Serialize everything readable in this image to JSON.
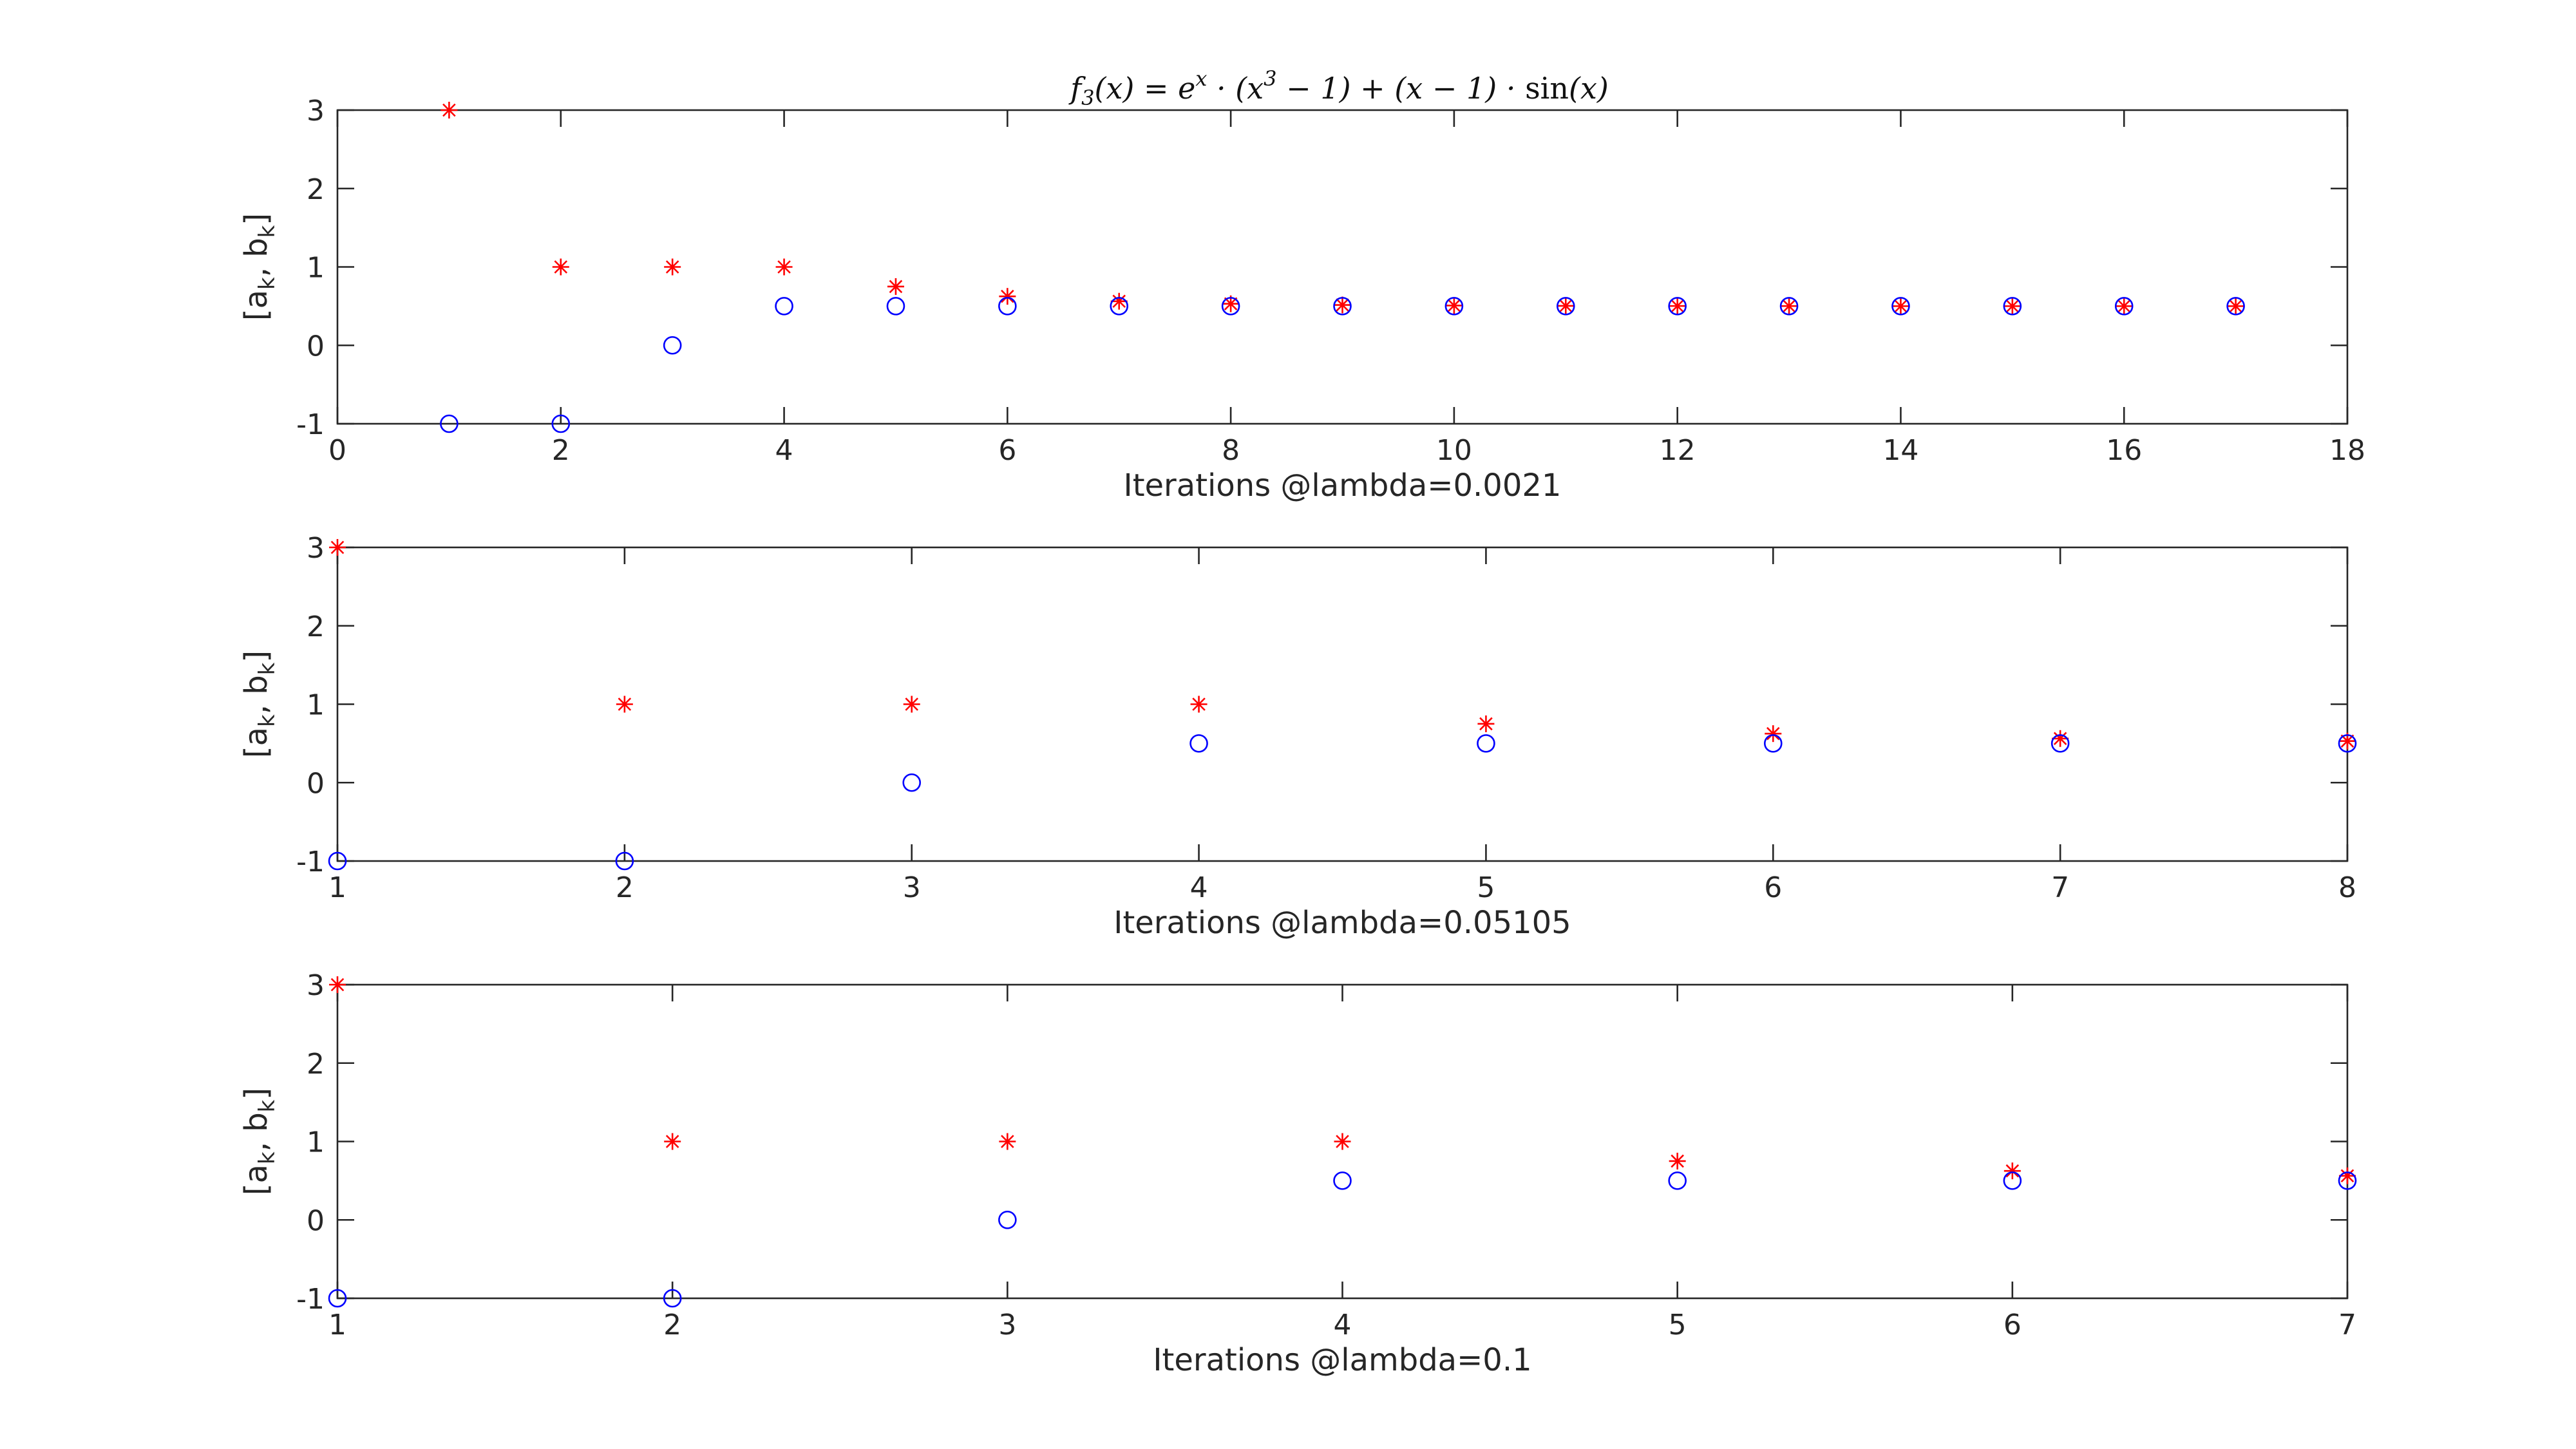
{
  "title": "f3(x) = e^x · (x^3 − 1) + (x − 1) · sin(x)",
  "title_parts": {
    "f": "f",
    "f_sub": "3",
    "lhs": "(x) = e",
    "exp1": "x",
    "mid": " · (x",
    "exp2": "3",
    "rest": " − 1) + (x − 1) · ",
    "sin": "sin",
    "tail": "(x)"
  },
  "ylabel_parts": {
    "open": "[a",
    "sub1": "k",
    "mid": ", b",
    "sub2": "k",
    "close": "]"
  },
  "colors": {
    "a_series": "#ff0000",
    "b_series": "#0000ff",
    "axes": "#262626"
  },
  "chart_data": [
    {
      "type": "scatter",
      "xlabel": "Iterations @lambda=0.0021",
      "ylabel": "[a_k, b_k]",
      "xlim": [
        0,
        18
      ],
      "ylim": [
        -1,
        3
      ],
      "xticks": [
        0,
        2,
        4,
        6,
        8,
        10,
        12,
        14,
        16,
        18
      ],
      "yticks": [
        -1,
        0,
        1,
        2,
        3
      ],
      "grid": false,
      "series": [
        {
          "marker": "star",
          "color": "#ff0000",
          "x": [
            1,
            2,
            3,
            4,
            5,
            6,
            7,
            8,
            9,
            10,
            11,
            12,
            13,
            14,
            15,
            16,
            17
          ],
          "y": [
            3,
            1,
            1,
            1,
            0.75,
            0.625,
            0.5625,
            0.53,
            0.515,
            0.508,
            0.504,
            0.502,
            0.501,
            0.5,
            0.5,
            0.5,
            0.5
          ]
        },
        {
          "marker": "circle",
          "color": "#0000ff",
          "x": [
            1,
            2,
            3,
            4,
            5,
            6,
            7,
            8,
            9,
            10,
            11,
            12,
            13,
            14,
            15,
            16,
            17
          ],
          "y": [
            -1,
            -1,
            0,
            0.5,
            0.5,
            0.5,
            0.5,
            0.5,
            0.5,
            0.5,
            0.5,
            0.5,
            0.5,
            0.5,
            0.5,
            0.5,
            0.5
          ]
        }
      ]
    },
    {
      "type": "scatter",
      "xlabel": "Iterations @lambda=0.05105",
      "ylabel": "[a_k, b_k]",
      "xlim": [
        1,
        8
      ],
      "ylim": [
        -1,
        3
      ],
      "xticks": [
        1,
        2,
        3,
        4,
        5,
        6,
        7,
        8
      ],
      "yticks": [
        -1,
        0,
        1,
        2,
        3
      ],
      "grid": false,
      "series": [
        {
          "marker": "star",
          "color": "#ff0000",
          "x": [
            1,
            2,
            3,
            4,
            5,
            6,
            7,
            8
          ],
          "y": [
            3,
            1,
            1,
            1,
            0.75,
            0.625,
            0.5625,
            0.53
          ]
        },
        {
          "marker": "circle",
          "color": "#0000ff",
          "x": [
            1,
            2,
            3,
            4,
            5,
            6,
            7,
            8
          ],
          "y": [
            -1,
            -1,
            0,
            0.5,
            0.5,
            0.5,
            0.5,
            0.5
          ]
        }
      ]
    },
    {
      "type": "scatter",
      "xlabel": "Iterations @lambda=0.1",
      "ylabel": "[a_k, b_k]",
      "xlim": [
        1,
        7
      ],
      "ylim": [
        -1,
        3
      ],
      "xticks": [
        1,
        2,
        3,
        4,
        5,
        6,
        7
      ],
      "yticks": [
        -1,
        0,
        1,
        2,
        3
      ],
      "grid": false,
      "series": [
        {
          "marker": "star",
          "color": "#ff0000",
          "x": [
            1,
            2,
            3,
            4,
            5,
            6,
            7
          ],
          "y": [
            3,
            1,
            1,
            1,
            0.75,
            0.625,
            0.5625
          ]
        },
        {
          "marker": "circle",
          "color": "#0000ff",
          "x": [
            1,
            2,
            3,
            4,
            5,
            6,
            7
          ],
          "y": [
            -1,
            -1,
            0,
            0.5,
            0.5,
            0.5,
            0.5
          ]
        }
      ]
    }
  ]
}
